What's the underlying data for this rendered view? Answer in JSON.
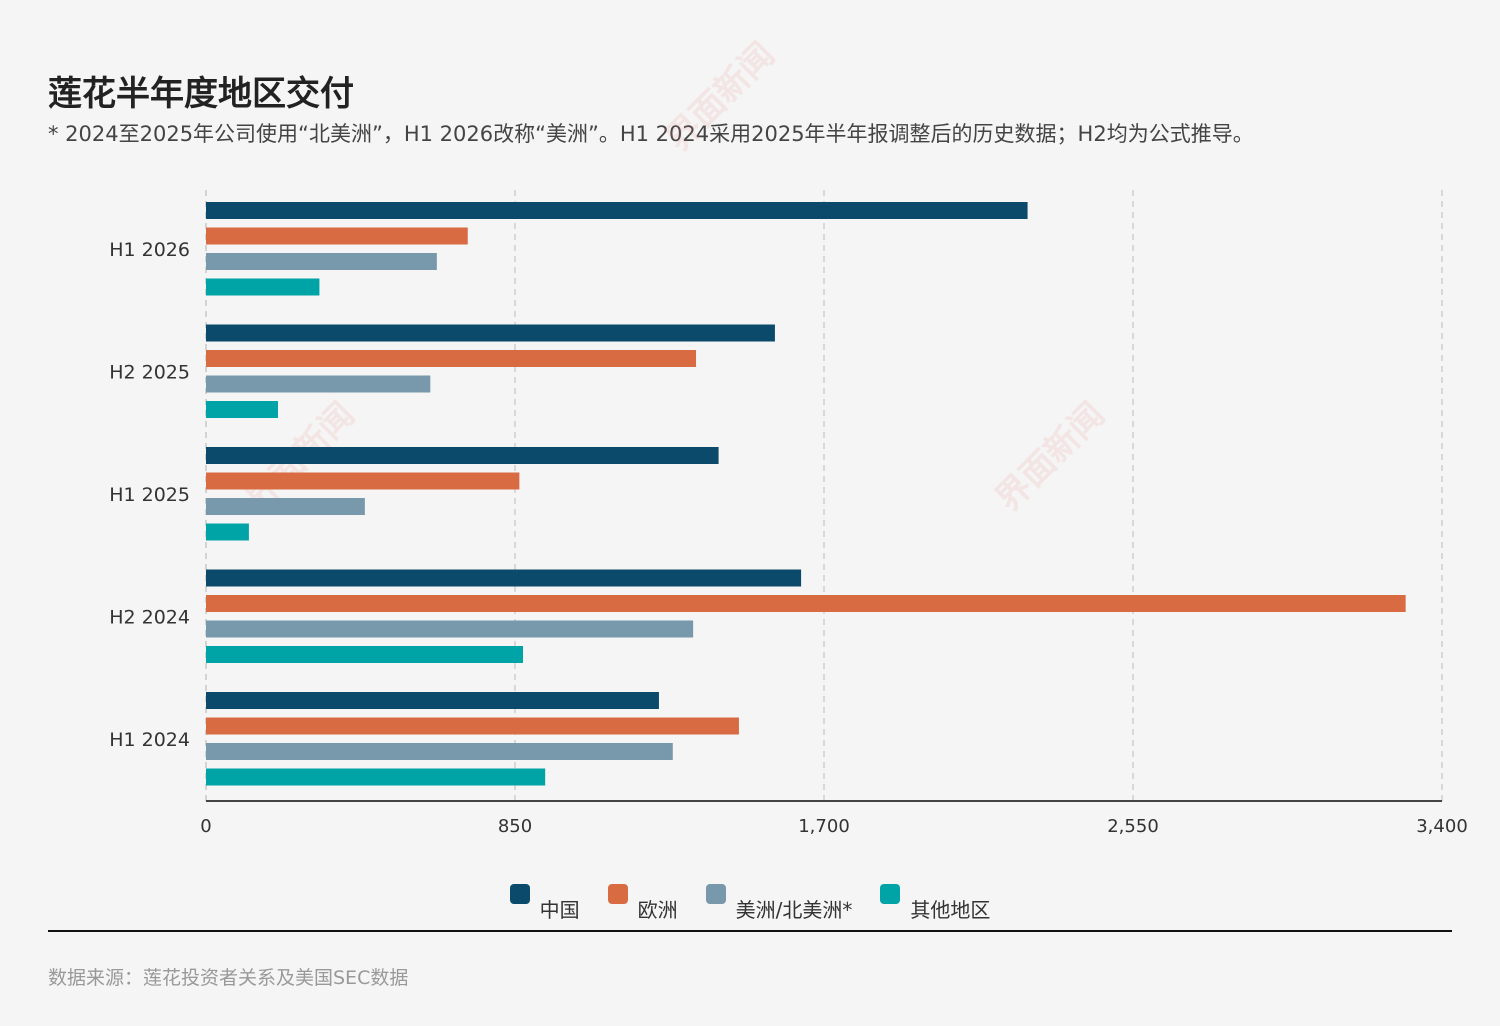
{
  "header": {
    "title": "莲花半年度地区交付",
    "subtitle": "* 2024至2025年公司使用“北美洲”，H1 2026改称“美洲”。H1 2024采用2025年半年报调整后的历史数据；H2均为公式推导。"
  },
  "watermark_text": "界面新闻",
  "chart_data": {
    "type": "bar",
    "orientation": "horizontal",
    "categories": [
      "H1 2026",
      "H2 2025",
      "H1 2025",
      "H2 2024",
      "H1 2024"
    ],
    "series": [
      {
        "name": "中国",
        "color": "#0b4a6b",
        "values": [
          2260,
          1565,
          1410,
          1637,
          1246
        ]
      },
      {
        "name": "欧洲",
        "color": "#d96b43",
        "values": [
          720,
          1348,
          862,
          3300,
          1466
        ]
      },
      {
        "name": "美洲/北美洲*",
        "color": "#7898ac",
        "values": [
          635,
          617,
          437,
          1340,
          1284
        ]
      },
      {
        "name": "其他地区",
        "color": "#00a3a6",
        "values": [
          312,
          198,
          118,
          872,
          933
        ]
      }
    ],
    "xlim": [
      0,
      3400
    ],
    "xticks": [
      "0",
      "850",
      "1,700",
      "2,550",
      "3,400"
    ],
    "xtick_values": [
      0,
      850,
      1700,
      2550,
      3400
    ],
    "grid": "vertical dashed",
    "legend_position": "bottom"
  },
  "footer": {
    "source": "数据来源：莲花投资者关系及美国SEC数据"
  }
}
